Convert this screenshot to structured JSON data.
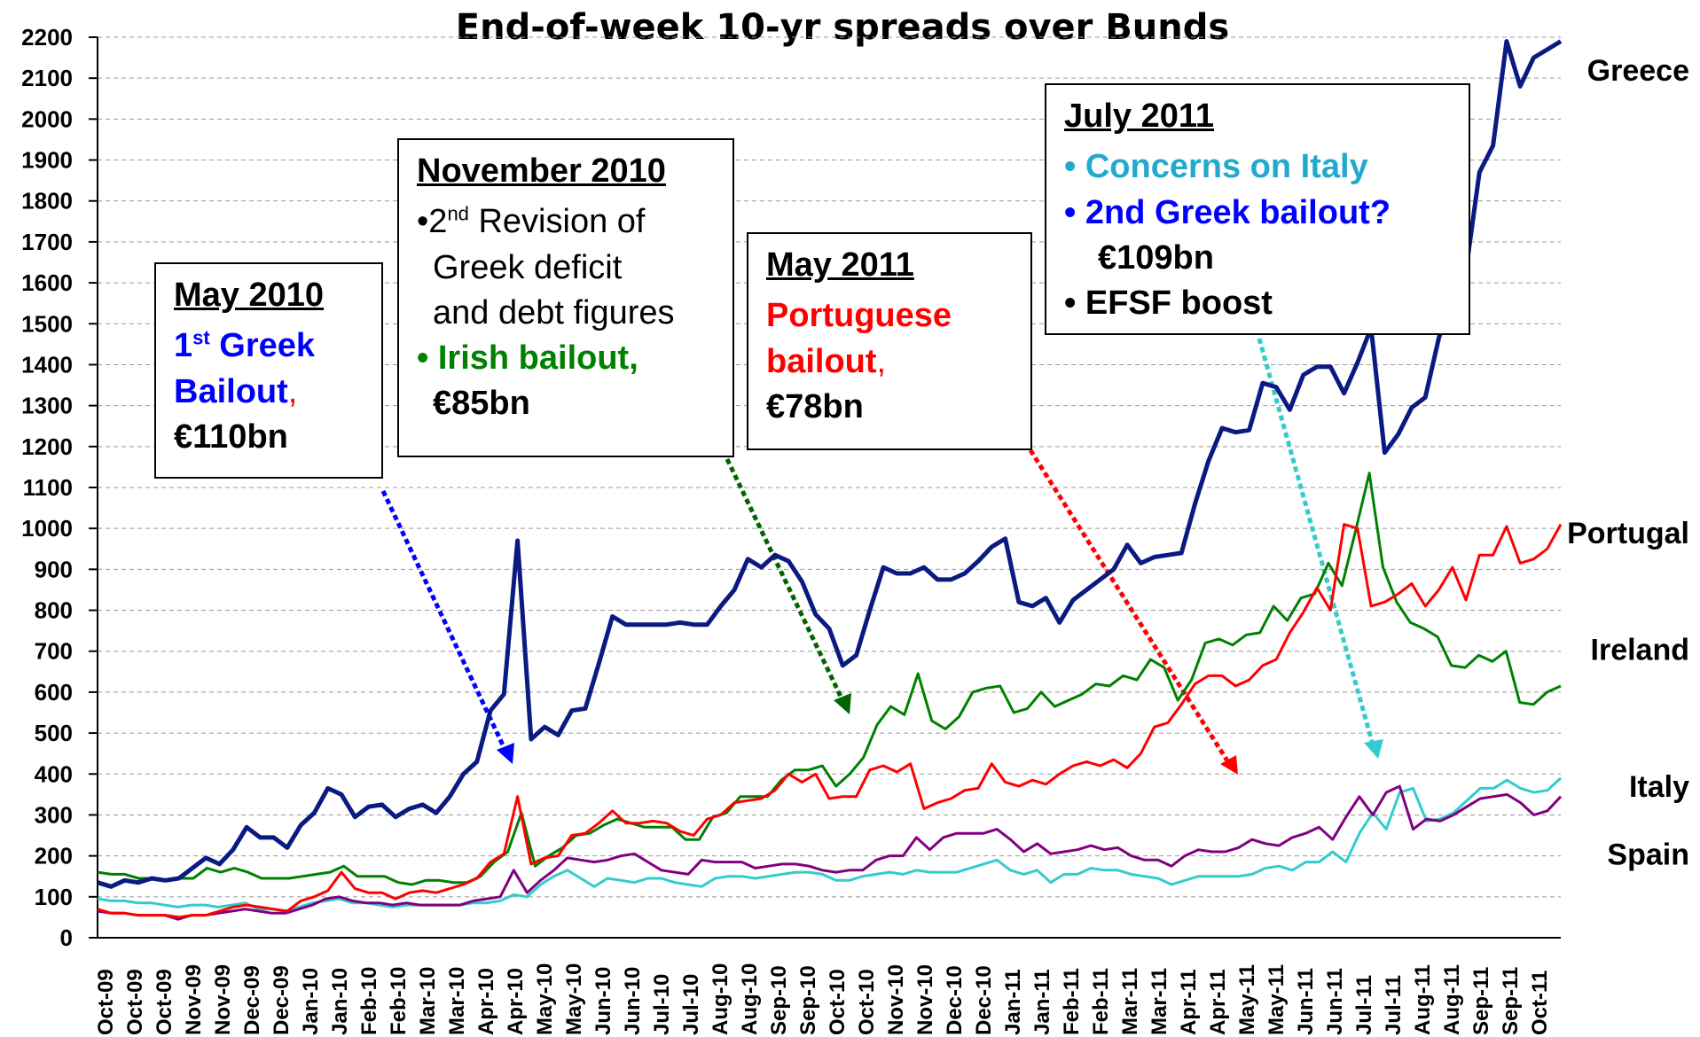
{
  "chart_data": {
    "type": "line",
    "title": "End-of-week 10-yr spreads over Bunds",
    "ylim": [
      0,
      2200
    ],
    "yticks": [
      "0",
      "100",
      "200",
      "300",
      "400",
      "500",
      "600",
      "700",
      "800",
      "900",
      "1000",
      "1100",
      "1200",
      "1300",
      "1400",
      "1500",
      "1600",
      "1700",
      "1800",
      "1900",
      "2000",
      "2100",
      "2200"
    ],
    "xtick_labels": [
      "Oct-09",
      "Oct-09",
      "Oct-09",
      "Nov-09",
      "Nov-09",
      "Dec-09",
      "Dec-09",
      "Jan-10",
      "Jan-10",
      "Feb-10",
      "Feb-10",
      "Mar-10",
      "Mar-10",
      "Apr-10",
      "Apr-10",
      "May-10",
      "May-10",
      "Jun-10",
      "Jun-10",
      "Jul-10",
      "Jul-10",
      "Aug-10",
      "Aug-10",
      "Sep-10",
      "Sep-10",
      "Oct-10",
      "Oct-10",
      "Nov-10",
      "Nov-10",
      "Dec-10",
      "Dec-10",
      "Jan-11",
      "Jan-11",
      "Feb-11",
      "Feb-11",
      "Mar-11",
      "Mar-11",
      "Apr-11",
      "Apr-11",
      "May-11",
      "May-11",
      "Jun-11",
      "Jun-11",
      "Jul-11",
      "Jul-11",
      "Aug-11",
      "Aug-11",
      "Sep-11",
      "Sep-11",
      "Oct-11"
    ],
    "grid": "horizontal dashed",
    "series": [
      {
        "name": "Greece",
        "color": "#0a1a80",
        "values": [
          135,
          125,
          140,
          135,
          145,
          140,
          145,
          170,
          195,
          180,
          215,
          270,
          245,
          245,
          220,
          275,
          305,
          365,
          350,
          295,
          320,
          325,
          295,
          315,
          325,
          305,
          345,
          400,
          430,
          555,
          595,
          970,
          485,
          515,
          495,
          555,
          560,
          670,
          785,
          765,
          765,
          765,
          765,
          770,
          765,
          765,
          810,
          850,
          925,
          905,
          935,
          920,
          870,
          790,
          755,
          665,
          690,
          800,
          905,
          890,
          890,
          905,
          875,
          875,
          890,
          920,
          955,
          975,
          820,
          810,
          830,
          770,
          825,
          850,
          875,
          900,
          960,
          915,
          930,
          935,
          940,
          1060,
          1165,
          1245,
          1235,
          1240,
          1355,
          1345,
          1290,
          1375,
          1395,
          1395,
          1330,
          1405,
          1490,
          1185,
          1230,
          1295,
          1320,
          1465,
          1570,
          1630,
          1870,
          1935,
          2190,
          2080,
          2150,
          2170,
          2190
        ]
      },
      {
        "name": "Portugal",
        "color": "#ff0000",
        "values": [
          70,
          60,
          60,
          55,
          55,
          55,
          50,
          55,
          55,
          65,
          75,
          80,
          75,
          70,
          65,
          90,
          100,
          115,
          160,
          120,
          110,
          110,
          95,
          110,
          115,
          110,
          120,
          130,
          145,
          185,
          205,
          345,
          180,
          195,
          200,
          250,
          255,
          280,
          310,
          280,
          280,
          285,
          280,
          260,
          250,
          290,
          300,
          330,
          335,
          340,
          360,
          400,
          380,
          400,
          340,
          345,
          345,
          410,
          420,
          405,
          425,
          315,
          330,
          340,
          360,
          365,
          425,
          380,
          370,
          385,
          375,
          400,
          420,
          430,
          420,
          435,
          415,
          450,
          515,
          525,
          570,
          620,
          640,
          640,
          615,
          630,
          665,
          680,
          745,
          795,
          855,
          800,
          1010,
          1000,
          810,
          820,
          840,
          865,
          810,
          850,
          905,
          825,
          935,
          935,
          1005,
          915,
          925,
          950,
          1010
        ]
      },
      {
        "name": "Ireland",
        "color": "#008000",
        "values": [
          160,
          155,
          155,
          145,
          145,
          140,
          145,
          145,
          170,
          160,
          170,
          160,
          145,
          145,
          145,
          150,
          155,
          160,
          175,
          150,
          150,
          150,
          135,
          130,
          140,
          140,
          135,
          135,
          150,
          185,
          210,
          305,
          175,
          200,
          220,
          250,
          255,
          275,
          290,
          280,
          270,
          270,
          270,
          240,
          240,
          295,
          305,
          345,
          345,
          345,
          385,
          410,
          410,
          420,
          370,
          400,
          440,
          520,
          565,
          545,
          645,
          530,
          510,
          540,
          600,
          610,
          615,
          550,
          560,
          600,
          565,
          580,
          595,
          620,
          615,
          640,
          630,
          680,
          660,
          580,
          630,
          720,
          730,
          715,
          740,
          745,
          810,
          775,
          830,
          840,
          915,
          860,
          995,
          1135,
          905,
          820,
          770,
          755,
          735,
          665,
          660,
          690,
          675,
          700,
          575,
          570,
          600,
          615
        ]
      },
      {
        "name": "Italy",
        "color": "#33cccc",
        "values": [
          95,
          90,
          90,
          85,
          85,
          80,
          75,
          80,
          80,
          75,
          80,
          85,
          70,
          70,
          65,
          75,
          85,
          90,
          95,
          85,
          85,
          80,
          75,
          80,
          80,
          80,
          80,
          80,
          85,
          85,
          90,
          105,
          100,
          130,
          150,
          165,
          145,
          125,
          145,
          140,
          135,
          145,
          145,
          135,
          130,
          125,
          145,
          150,
          150,
          145,
          150,
          155,
          160,
          160,
          155,
          140,
          140,
          150,
          155,
          160,
          155,
          165,
          160,
          160,
          160,
          170,
          180,
          190,
          165,
          155,
          165,
          135,
          155,
          155,
          170,
          165,
          165,
          155,
          150,
          145,
          130,
          140,
          150,
          150,
          150,
          150,
          155,
          170,
          175,
          165,
          185,
          185,
          210,
          185,
          255,
          305,
          265,
          355,
          365,
          285,
          290,
          305,
          335,
          365,
          365,
          385,
          365,
          355,
          360,
          390
        ]
      },
      {
        "name": "Spain",
        "color": "#800080",
        "values": [
          65,
          60,
          60,
          55,
          55,
          55,
          45,
          55,
          55,
          60,
          65,
          70,
          65,
          60,
          60,
          70,
          80,
          95,
          100,
          90,
          85,
          85,
          80,
          85,
          80,
          80,
          80,
          80,
          90,
          95,
          100,
          165,
          110,
          140,
          165,
          195,
          190,
          185,
          190,
          200,
          205,
          185,
          165,
          160,
          155,
          190,
          185,
          185,
          185,
          170,
          175,
          180,
          180,
          175,
          165,
          160,
          165,
          165,
          190,
          200,
          200,
          245,
          215,
          245,
          255,
          255,
          255,
          265,
          240,
          210,
          230,
          205,
          210,
          215,
          225,
          215,
          220,
          200,
          190,
          190,
          175,
          200,
          215,
          210,
          210,
          220,
          240,
          230,
          225,
          245,
          255,
          270,
          240,
          295,
          345,
          300,
          355,
          370,
          265,
          290,
          285,
          300,
          320,
          340,
          345,
          350,
          330,
          300,
          310,
          345
        ]
      }
    ],
    "series_labels": [
      "Greece",
      "Portugal",
      "Ireland",
      "Italy",
      "Spain"
    ]
  },
  "annotations": {
    "may2010": {
      "heading": "May 2010",
      "l1a": "1",
      "l1sup": "st",
      "l1b": " Greek",
      "l2": "Bailout",
      "l2comma": ",",
      "l3": "€110bn"
    },
    "nov2010": {
      "heading": "November 2010",
      "b1a": "•2",
      "b1sup": "nd",
      "b1b": " Revision of",
      "b1c": "Greek deficit",
      "b1d": "and debt figures",
      "b2bullet": "•",
      "b2": " Irish bailout,",
      "b2amt": "€85bn"
    },
    "may2011": {
      "heading": "May 2011",
      "l1": "Portuguese",
      "l2": "bailout",
      "l2comma": ",",
      "l3": "€78bn"
    },
    "jul2011": {
      "heading": "July 2011",
      "b1": "• Concerns on Italy",
      "b2": "• 2nd Greek bailout?",
      "b2amt": "€109bn",
      "b3": "• EFSF boost"
    }
  }
}
